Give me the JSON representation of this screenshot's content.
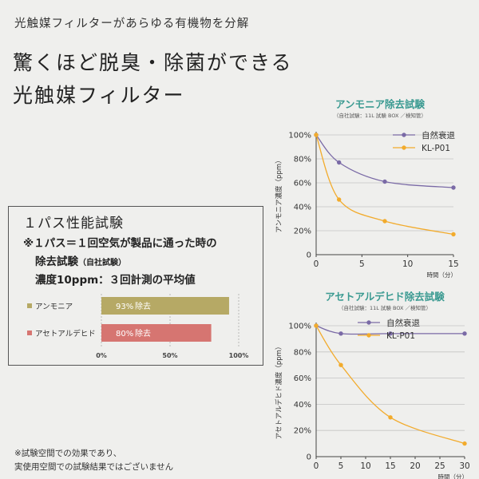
{
  "header": {
    "subtitle": "光触媒フィルターがあらゆる有機物を分解",
    "headline_line1": "驚くほど脱臭・除菌ができる",
    "headline_line2": "光触媒フィルター"
  },
  "panel": {
    "title": "１パス性能試験",
    "note_line1": "※１パス＝１回空気が製品に通った時の",
    "note_line2_main": "除去試験",
    "note_line2_small": "（自社試験）",
    "note_line3": "濃度10ppm：３回計測の平均値"
  },
  "footnote": {
    "line1": "※試験空間での効果であり、",
    "line2": "実使用空間での試験結果ではございません"
  },
  "colors": {
    "purple": "#7a6aa6",
    "orange": "#f2ab2c",
    "teal": "#3a9a91",
    "ammonia_bar": "#b6a965",
    "acet_bar": "#d67571"
  },
  "chart_data": [
    {
      "type": "bar",
      "orientation": "horizontal",
      "categories": [
        "アンモニア",
        "アセトアルデヒド"
      ],
      "values": [
        93,
        80
      ],
      "value_labels": [
        "93%",
        "80%"
      ],
      "unit_label": "除去",
      "xticks": [
        "0%",
        "50%",
        "100%"
      ],
      "xlim": [
        0,
        100
      ]
    },
    {
      "type": "line",
      "title": "アンモニア除去試験",
      "subtitle": "（自社試験：11L 試験 BOX ／検知管）",
      "xlabel": "時間（分）",
      "ylabel": "アンモニア濃度（ppm）",
      "xlim": [
        0,
        15
      ],
      "ylim": [
        0,
        100
      ],
      "xticks": [
        "0",
        "5",
        "10",
        "15"
      ],
      "yticks": [
        "0",
        "20%",
        "40%",
        "60%",
        "80%",
        "100%"
      ],
      "legend_position": "top-right",
      "series": [
        {
          "name": "自然衰退",
          "x": [
            0,
            2.5,
            7.5,
            15
          ],
          "y": [
            100,
            77,
            61,
            56
          ]
        },
        {
          "name": "KL-P01",
          "x": [
            0,
            2.5,
            7.5,
            15
          ],
          "y": [
            100,
            46,
            28,
            17
          ]
        }
      ]
    },
    {
      "type": "line",
      "title": "アセトアルデヒド除去試験",
      "subtitle": "（自社試験：11L 試験 BOX ／検知管）",
      "xlabel": "時間（分）",
      "ylabel": "アセトアルデヒド濃度（ppm）",
      "xlim": [
        0,
        30
      ],
      "ylim": [
        0,
        100
      ],
      "xticks": [
        "0",
        "5",
        "10",
        "15",
        "20",
        "25",
        "30"
      ],
      "yticks": [
        "0",
        "20%",
        "40%",
        "60%",
        "80%",
        "100%"
      ],
      "legend_position": "top-right",
      "series": [
        {
          "name": "自然衰退",
          "x": [
            0,
            5,
            15,
            30
          ],
          "y": [
            100,
            94,
            94,
            94
          ]
        },
        {
          "name": "KL-P01",
          "x": [
            0,
            5,
            15,
            30
          ],
          "y": [
            100,
            70,
            30,
            10
          ]
        }
      ]
    }
  ]
}
